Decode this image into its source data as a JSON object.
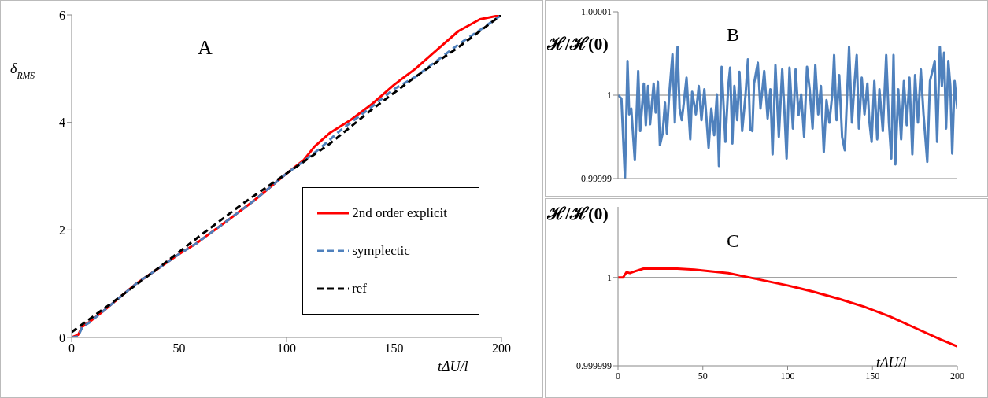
{
  "chart_data": [
    {
      "type": "line",
      "title": "A",
      "xlabel": "tΔU/l",
      "ylabel": "δ$_{RMS}$",
      "xlim": [
        0,
        200
      ],
      "xticks": [
        0,
        50,
        100,
        150,
        200
      ],
      "ylim": [
        0,
        6
      ],
      "yticks": [
        0,
        2,
        4,
        6
      ],
      "legend": "bottom right",
      "marker": "none",
      "series": [
        {
          "name": "2nd order explicit",
          "color": "#ff0000",
          "line_style": "solid",
          "x": [
            0,
            3,
            5,
            8,
            15,
            30,
            50,
            58,
            70,
            85,
            100,
            108,
            113,
            120,
            130,
            140,
            150,
            160,
            170,
            180,
            190,
            200
          ],
          "values": [
            0,
            0.05,
            0.2,
            0.28,
            0.5,
            1.0,
            1.55,
            1.75,
            2.1,
            2.55,
            3.05,
            3.3,
            3.55,
            3.8,
            4.05,
            4.35,
            4.7,
            5.0,
            5.35,
            5.7,
            5.92,
            6.0
          ]
        },
        {
          "name": "symplectic",
          "color": "#4f81bd",
          "line_style": "dashed",
          "x": [
            0,
            3,
            5,
            8,
            15,
            30,
            50,
            58,
            70,
            85,
            100,
            108,
            115,
            125,
            140,
            150,
            160,
            170,
            180,
            190,
            200
          ],
          "values": [
            0,
            0.02,
            0.2,
            0.27,
            0.5,
            1.0,
            1.55,
            1.75,
            2.1,
            2.55,
            3.05,
            3.28,
            3.5,
            3.85,
            4.3,
            4.62,
            4.85,
            5.15,
            5.45,
            5.72,
            6.0
          ]
        },
        {
          "name": "ref",
          "color": "#000000",
          "line_style": "dashed",
          "x": [
            0,
            20,
            40,
            60,
            80,
            100,
            120,
            140,
            160,
            180,
            200
          ],
          "values": [
            0.1,
            0.68,
            1.28,
            1.9,
            2.5,
            3.05,
            3.6,
            4.25,
            4.85,
            5.4,
            6.0
          ]
        }
      ]
    },
    {
      "type": "line",
      "title": "B",
      "ylabel": "ℋ/ℋ(0)",
      "xlim": [
        0,
        200
      ],
      "xticks": [
        0,
        50,
        100,
        150,
        200
      ],
      "ylim": [
        0.99999,
        1.00001
      ],
      "yticks": [
        0.99999,
        1,
        1.00001
      ],
      "tick_labels": "y",
      "marker": "none",
      "ref_lines": [
        {
          "axis": "y",
          "value": 1,
          "color": "#808080"
        }
      ],
      "series": [
        {
          "color": "#4f81bd",
          "line_style": "solid",
          "x": [
            0,
            2.0,
            4.1,
            5.6,
            6.6,
            7.8,
            9.9,
            11.9,
            13.1,
            15.2,
            16.4,
            17.7,
            18.9,
            21.0,
            22.2,
            23.5,
            24.7,
            26.3,
            27.7,
            28.8,
            30.2,
            32.1,
            33.5,
            35.1,
            36.3,
            37.6,
            38.8,
            40.4,
            42.6,
            43.7,
            45.9,
            47.6,
            49.2,
            50.9,
            53.4,
            55.0,
            56.7,
            58.3,
            59.5,
            61.1,
            63.3,
            65.0,
            66.1,
            67.4,
            68.6,
            70.3,
            71.6,
            73.2,
            75.2,
            76.6,
            77.9,
            79.2,
            80.2,
            82.4,
            84.0,
            86.2,
            88.2,
            89.8,
            91.1,
            92.8,
            94.8,
            96.8,
            98.1,
            99.4,
            101.1,
            103.1,
            104.7,
            106.4,
            108.0,
            109.7,
            111.4,
            113.0,
            114.7,
            116.3,
            118.0,
            119.6,
            121.3,
            122.9,
            124.6,
            126.3,
            127.4,
            128.8,
            130.4,
            132.1,
            133.7,
            136.2,
            137.9,
            139.5,
            140.7,
            142.0,
            143.7,
            145.3,
            147.0,
            148.1,
            149.5,
            151.1,
            152.8,
            154.1,
            156.1,
            158.1,
            159.7,
            161.1,
            162.4,
            163.5,
            165.2,
            166.9,
            168.5,
            170.2,
            171.8,
            173.5,
            175.1,
            176.8,
            178.5,
            180.1,
            182.3,
            183.9,
            185.6,
            186.7,
            188.1,
            189.7,
            190.9,
            192.2,
            193.4,
            194.7,
            195.9,
            197.0,
            198.4,
            200
          ],
          "values": [
            1,
            0.9999996,
            0.99999,
            1.0000041,
            0.9999977,
            0.9999984,
            0.9999922,
            1.0000029,
            0.9999957,
            1.0000014,
            0.9999964,
            1.0000011,
            0.9999965,
            1.0000014,
            0.9999979,
            1.0000016,
            0.999994,
            0.9999954,
            0.9999991,
            0.9999954,
            1.0000001,
            1.0000049,
            0.9999967,
            1.0000058,
            0.9999984,
            0.999997,
            0.9999991,
            1.0000021,
            0.9999947,
            1.0000004,
            0.9999977,
            1.0000011,
            0.999997,
            1.0000007,
            0.9999937,
            0.9999984,
            0.9999952,
            1.0000001,
            0.9999915,
            1.0000034,
            0.9999944,
            1.0000011,
            1.0000033,
            0.9999942,
            1.0000011,
            0.999997,
            1.0000028,
            0.9999957,
            1.0000001,
            1.0000043,
            0.9999959,
            0.9999957,
            1.0000014,
            1.0000039,
            0.9999984,
            1.0000029,
            0.9999972,
            1.0000007,
            0.9999929,
            1.0000036,
            0.999995,
            1.0000031,
            0.9999981,
            0.9999924,
            1.0000033,
            0.999996,
            1.0000031,
            0.9999976,
            1.0000001,
            0.999995,
            1.0000034,
            1.0000007,
            0.999996,
            1.0000036,
            0.9999977,
            1.0000011,
            0.9999932,
            0.9999994,
            0.9999967,
            1.0000001,
            1.0000048,
            0.999997,
            1.0000024,
            0.999995,
            0.9999934,
            1.0000058,
            0.9999967,
            1.0000017,
            1.0000048,
            0.999996,
            1.0000021,
            0.9999977,
            1.0000014,
            0.999997,
            0.9999944,
            1.0000017,
            0.9999947,
            1.0000007,
            0.9999957,
            1.0000048,
            0.9999967,
            0.9999924,
            1.0000048,
            0.9999917,
            1.0000007,
            0.9999947,
            1.0000017,
            0.9999964,
            1.0000021,
            0.9999929,
            1.0000024,
            0.9999967,
            1.0000031,
            0.9999977,
            0.999992,
            1.0000017,
            1.0000031,
            1.0000041,
            0.9999944,
            1.0000058,
            1.0000011,
            1.0000051,
            0.999996,
            1.0000041,
            1.0000011,
            0.999993,
            1.0000017,
            0.9999984
          ]
        }
      ]
    },
    {
      "type": "line",
      "title": "C",
      "xlabel": "tΔU/l",
      "ylabel": "ℋ/ℋ(0)",
      "xlim": [
        0,
        200
      ],
      "xticks": [
        0,
        50,
        100,
        150,
        200
      ],
      "ylim": [
        0.999999,
        1.0000008
      ],
      "yticks": [
        0.999999,
        1
      ],
      "marker": "none",
      "ref_lines": [
        {
          "axis": "y",
          "value": 1,
          "color": "#808080"
        }
      ],
      "series": [
        {
          "color": "#ff0000",
          "line_style": "solid",
          "x": [
            0,
            3,
            5,
            7,
            10,
            15,
            25,
            35,
            45,
            55,
            65,
            75,
            85,
            100,
            115,
            130,
            145,
            160,
            175,
            190,
            200
          ],
          "values": [
            1,
            1,
            1.00000006,
            1.00000005,
            1.00000007,
            1.0000001,
            1.0000001,
            1.0000001,
            1.00000009,
            1.00000007,
            1.00000005,
            1.00000001,
            0.99999997,
            0.99999991,
            0.99999984,
            0.99999976,
            0.99999967,
            0.99999956,
            0.99999943,
            0.9999993,
            0.99999922
          ]
        }
      ]
    }
  ]
}
